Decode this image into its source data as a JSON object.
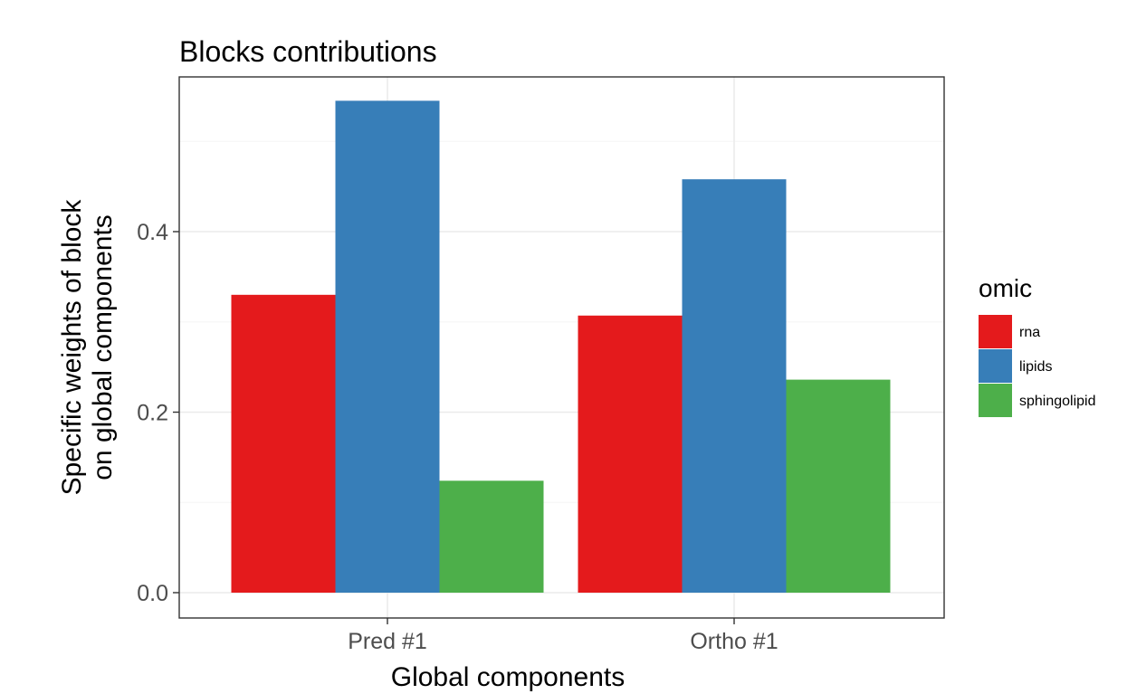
{
  "chart_data": {
    "type": "bar",
    "title": "Blocks contributions",
    "xlabel": "Global components",
    "ylabel_lines": [
      "Specific weights of block",
      "on global components"
    ],
    "categories": [
      "Pred #1",
      "Ortho #1"
    ],
    "series": [
      {
        "name": "rna",
        "color": "#E41A1C",
        "values": [
          0.33,
          0.307
        ]
      },
      {
        "name": "lipids",
        "color": "#377EB8",
        "values": [
          0.545,
          0.458
        ]
      },
      {
        "name": "sphingolipid",
        "color": "#4DAF4A",
        "values": [
          0.124,
          0.236
        ]
      }
    ],
    "ylim": [
      0,
      0.575
    ],
    "yticks": [
      0.0,
      0.2,
      0.4
    ],
    "ytick_labels": [
      "0.0",
      "0.2",
      "0.4"
    ],
    "grid": true,
    "legend": {
      "title": "omic",
      "position": "right"
    }
  }
}
